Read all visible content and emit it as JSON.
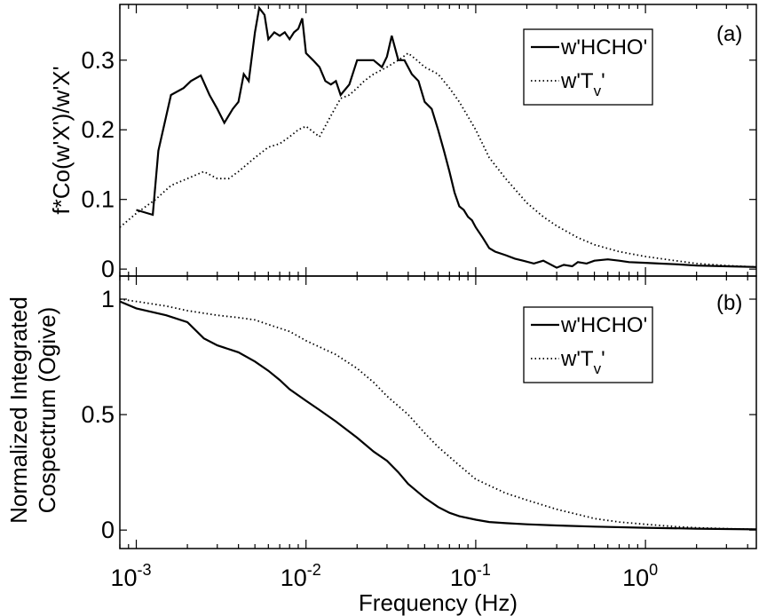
{
  "chart_data": [
    {
      "panel": "(a)",
      "type": "line",
      "ylabel": "f*Co(w'X')/w'X'",
      "xscale": "log",
      "xlim": [
        0.0008,
        4.5
      ],
      "ylim": [
        -0.01,
        0.38
      ],
      "yticks": [
        0,
        0.1,
        0.2,
        0.3
      ],
      "ytick_labels": [
        "0",
        "0.1",
        "0.2",
        "0.3"
      ],
      "legend": {
        "position": "top-right",
        "entries": [
          {
            "main": "w'HCHO'",
            "sub": "",
            "tail": "",
            "style": "solid"
          },
          {
            "main": "w'T",
            "sub": "v",
            "tail": "'",
            "style": "dotted"
          }
        ]
      },
      "series": [
        {
          "name": "w'HCHO'",
          "style": "solid",
          "x": [
            0.001,
            0.00125,
            0.00135,
            0.0016,
            0.0019,
            0.0021,
            0.0024,
            0.0027,
            0.003,
            0.0033,
            0.0037,
            0.004,
            0.0043,
            0.0046,
            0.005,
            0.0053,
            0.0057,
            0.006,
            0.0065,
            0.007,
            0.0075,
            0.008,
            0.0085,
            0.009,
            0.0095,
            0.01,
            0.011,
            0.012,
            0.013,
            0.014,
            0.015,
            0.016,
            0.018,
            0.02,
            0.022,
            0.025,
            0.028,
            0.03,
            0.032,
            0.035,
            0.038,
            0.042,
            0.046,
            0.05,
            0.055,
            0.06,
            0.065,
            0.07,
            0.075,
            0.08,
            0.085,
            0.09,
            0.095,
            0.1,
            0.11,
            0.12,
            0.13,
            0.15,
            0.17,
            0.19,
            0.22,
            0.25,
            0.3,
            0.33,
            0.37,
            0.4,
            0.45,
            0.5,
            0.6,
            0.7,
            0.8,
            1,
            1.2,
            1.5,
            2,
            3,
            4.5
          ],
          "y": [
            0.085,
            0.078,
            0.17,
            0.25,
            0.26,
            0.27,
            0.278,
            0.25,
            0.23,
            0.21,
            0.23,
            0.24,
            0.28,
            0.27,
            0.34,
            0.375,
            0.365,
            0.33,
            0.34,
            0.335,
            0.34,
            0.33,
            0.34,
            0.345,
            0.36,
            0.31,
            0.3,
            0.29,
            0.27,
            0.265,
            0.27,
            0.25,
            0.265,
            0.3,
            0.3,
            0.3,
            0.29,
            0.305,
            0.335,
            0.3,
            0.3,
            0.28,
            0.27,
            0.24,
            0.23,
            0.2,
            0.17,
            0.14,
            0.11,
            0.09,
            0.085,
            0.075,
            0.07,
            0.06,
            0.045,
            0.03,
            0.025,
            0.02,
            0.015,
            0.012,
            0.008,
            0.012,
            0.002,
            0.006,
            0.004,
            0.01,
            0.008,
            0.012,
            0.014,
            0.012,
            0.01,
            0.009,
            0.008,
            0.007,
            0.005,
            0.004,
            0.003
          ]
        },
        {
          "name": "w'Tv'",
          "style": "dotted",
          "x": [
            0.0008,
            0.001,
            0.0013,
            0.0016,
            0.002,
            0.0025,
            0.003,
            0.0035,
            0.004,
            0.005,
            0.006,
            0.007,
            0.008,
            0.009,
            0.01,
            0.012,
            0.014,
            0.016,
            0.018,
            0.02,
            0.022,
            0.025,
            0.03,
            0.035,
            0.04,
            0.045,
            0.05,
            0.06,
            0.07,
            0.08,
            0.1,
            0.12,
            0.15,
            0.2,
            0.25,
            0.3,
            0.4,
            0.5,
            0.7,
            1,
            1.5,
            2,
            3,
            4.5
          ],
          "y": [
            0.06,
            0.08,
            0.1,
            0.12,
            0.13,
            0.14,
            0.13,
            0.13,
            0.14,
            0.16,
            0.175,
            0.18,
            0.19,
            0.2,
            0.205,
            0.19,
            0.22,
            0.245,
            0.25,
            0.26,
            0.27,
            0.28,
            0.29,
            0.3,
            0.31,
            0.3,
            0.29,
            0.28,
            0.26,
            0.24,
            0.2,
            0.16,
            0.13,
            0.095,
            0.075,
            0.062,
            0.045,
            0.035,
            0.025,
            0.018,
            0.012,
            0.008,
            0.005,
            0.003
          ]
        }
      ]
    },
    {
      "panel": "(b)",
      "type": "line",
      "xlabel": "Frequency (Hz)",
      "ylabel": [
        "Normalized Integrated",
        "Cospectrum (Ogive)"
      ],
      "xscale": "log",
      "xlim": [
        0.0008,
        4.5
      ],
      "ylim": [
        -0.08,
        1.1
      ],
      "yticks": [
        0,
        0.5,
        1
      ],
      "ytick_labels": [
        "0",
        "0.5",
        "1"
      ],
      "xticks": [
        0.001,
        0.01,
        0.1,
        1
      ],
      "xtick_labels": [
        {
          "base": "10",
          "exp": "-3"
        },
        {
          "base": "10",
          "exp": "-2"
        },
        {
          "base": "10",
          "exp": "-1"
        },
        {
          "base": "10",
          "exp": "0"
        }
      ],
      "legend": {
        "position": "upper-right",
        "entries": [
          {
            "main": "w'HCHO'",
            "sub": "",
            "tail": "",
            "style": "solid"
          },
          {
            "main": "w'T",
            "sub": "v",
            "tail": "'",
            "style": "dotted"
          }
        ]
      },
      "series": [
        {
          "name": "w'HCHO'",
          "style": "solid",
          "x": [
            0.0008,
            0.001,
            0.0015,
            0.002,
            0.0025,
            0.003,
            0.004,
            0.005,
            0.006,
            0.007,
            0.008,
            0.01,
            0.012,
            0.015,
            0.02,
            0.025,
            0.03,
            0.035,
            0.04,
            0.05,
            0.06,
            0.07,
            0.08,
            0.1,
            0.12,
            0.15,
            0.2,
            0.3,
            0.5,
            1,
            2,
            4.5
          ],
          "y": [
            0.99,
            0.96,
            0.93,
            0.9,
            0.83,
            0.8,
            0.77,
            0.73,
            0.69,
            0.65,
            0.61,
            0.56,
            0.52,
            0.47,
            0.4,
            0.34,
            0.3,
            0.25,
            0.2,
            0.14,
            0.1,
            0.075,
            0.06,
            0.045,
            0.035,
            0.03,
            0.025,
            0.02,
            0.015,
            0.01,
            0.006,
            0.003
          ]
        },
        {
          "name": "w'Tv'",
          "style": "dotted",
          "x": [
            0.0008,
            0.001,
            0.0015,
            0.002,
            0.003,
            0.004,
            0.005,
            0.006,
            0.008,
            0.01,
            0.015,
            0.02,
            0.025,
            0.03,
            0.04,
            0.05,
            0.06,
            0.08,
            0.1,
            0.15,
            0.2,
            0.3,
            0.5,
            0.7,
            1,
            1.5,
            2,
            3,
            4.5
          ],
          "y": [
            1,
            0.99,
            0.97,
            0.95,
            0.93,
            0.92,
            0.91,
            0.89,
            0.86,
            0.82,
            0.76,
            0.7,
            0.64,
            0.58,
            0.5,
            0.42,
            0.36,
            0.28,
            0.22,
            0.16,
            0.13,
            0.09,
            0.05,
            0.035,
            0.025,
            0.015,
            0.01,
            0.006,
            0.003
          ]
        }
      ]
    }
  ]
}
